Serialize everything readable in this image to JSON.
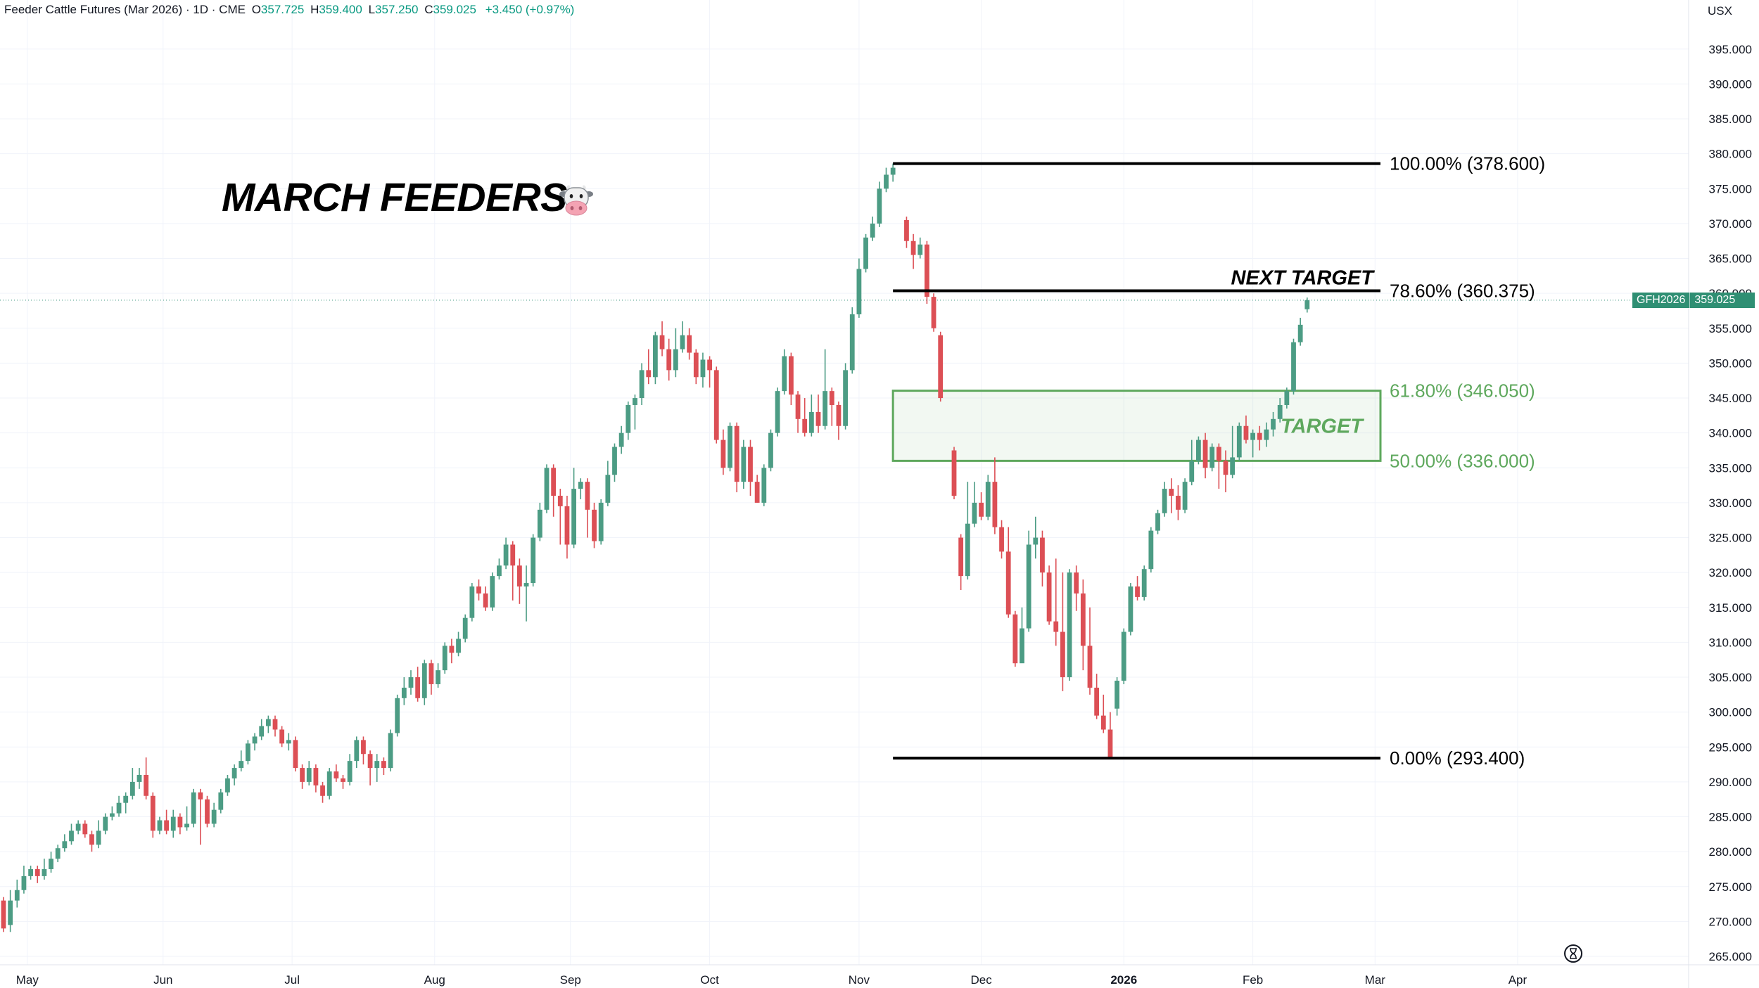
{
  "header": {
    "symbol_title": "Feeder Cattle Futures (Mar 2026) · 1D · CME",
    "open_label": "O",
    "open": "357.725",
    "high_label": "H",
    "high": "359.400",
    "low_label": "L",
    "low": "357.250",
    "close_label": "C",
    "close": "359.025",
    "change": "+3.450 (+0.97%)"
  },
  "currency": "USX",
  "annotation_title": "MARCH FEEDERS",
  "price_tag": {
    "symbol": "GFH2026",
    "value": "359.025"
  },
  "colors": {
    "up": "#4c9c84",
    "down": "#dc4f55",
    "target_zone": "#5ea85d",
    "fib_line": "#000000",
    "last_price_line": "#2f8f73"
  },
  "chart_data": {
    "type": "candlestick",
    "title": "Feeder Cattle Futures (Mar 2026)",
    "y_axis": {
      "ticks": [
        265.0,
        270.0,
        275.0,
        280.0,
        285.0,
        290.0,
        295.0,
        300.0,
        305.0,
        310.0,
        315.0,
        320.0,
        325.0,
        330.0,
        335.0,
        340.0,
        345.0,
        350.0,
        355.0,
        360.0,
        365.0,
        370.0,
        375.0,
        380.0,
        385.0,
        390.0,
        395.0
      ],
      "range": [
        264.5,
        397.5
      ],
      "side": "right"
    },
    "x_axis": {
      "labels": [
        "May",
        "Jun",
        "Jul",
        "Aug",
        "Sep",
        "Oct",
        "Nov",
        "Dec",
        "2026",
        "Feb",
        "Mar",
        "Apr"
      ],
      "bold": [
        "2026"
      ]
    },
    "candles": [
      [
        0,
        273,
        269,
        273.5,
        268.5
      ],
      [
        1,
        269.5,
        273,
        274.5,
        268.5
      ],
      [
        2,
        273,
        274.5,
        276,
        272
      ],
      [
        3,
        274.5,
        276.5,
        278,
        274
      ],
      [
        4,
        276.5,
        277.5,
        278,
        276
      ],
      [
        5,
        277.5,
        276.5,
        278,
        275.5
      ],
      [
        6,
        276.5,
        277.5,
        279,
        276
      ],
      [
        7,
        277.5,
        279,
        280,
        277
      ],
      [
        8,
        279,
        280.5,
        281,
        278.5
      ],
      [
        9,
        280.5,
        281.5,
        282.5,
        280
      ],
      [
        10,
        281.5,
        283,
        284,
        281
      ],
      [
        11,
        283,
        284,
        284.5,
        282.5
      ],
      [
        12,
        284,
        282.5,
        284.5,
        282
      ],
      [
        13,
        282.5,
        281,
        283,
        280
      ],
      [
        14,
        281,
        283,
        284.5,
        280.5
      ],
      [
        15,
        283,
        285,
        285.5,
        282.5
      ],
      [
        16,
        285,
        285.5,
        286.5,
        284.5
      ],
      [
        17,
        285.5,
        287,
        288,
        285
      ],
      [
        18,
        287,
        288,
        288.5,
        285.5
      ],
      [
        19,
        288,
        290,
        292,
        287.5
      ],
      [
        20,
        290,
        291,
        292,
        289
      ],
      [
        21,
        291,
        288,
        293.5,
        287.5
      ],
      [
        22,
        288,
        283,
        288.5,
        282
      ],
      [
        23,
        283,
        284.5,
        285,
        282.5
      ],
      [
        24,
        284.5,
        283,
        286,
        282.5
      ],
      [
        25,
        283,
        285,
        286,
        282
      ],
      [
        26,
        285,
        283.5,
        285.5,
        282.5
      ],
      [
        27,
        283.5,
        284,
        286.5,
        283
      ],
      [
        28,
        284,
        288.5,
        289,
        283.5
      ],
      [
        29,
        288.5,
        287.5,
        289,
        281
      ],
      [
        30,
        287.5,
        284,
        288,
        283.5
      ],
      [
        31,
        284,
        286,
        287,
        283.5
      ],
      [
        32,
        286,
        288.5,
        289,
        285.5
      ],
      [
        33,
        288.5,
        290.5,
        291,
        288
      ],
      [
        34,
        290.5,
        292,
        292.5,
        289.5
      ],
      [
        35,
        292,
        293,
        294.5,
        291.5
      ],
      [
        36,
        293,
        295.5,
        296,
        292.5
      ],
      [
        37,
        295.5,
        296.5,
        297,
        294.5
      ],
      [
        38,
        296.5,
        298,
        299,
        296
      ],
      [
        39,
        298,
        299,
        299.5,
        297
      ],
      [
        40,
        299,
        297.5,
        299.5,
        296.5
      ],
      [
        41,
        297.5,
        295.5,
        298,
        295
      ],
      [
        42,
        295.5,
        296,
        297,
        294.5
      ],
      [
        43,
        296,
        292,
        296.5,
        291.5
      ],
      [
        44,
        292,
        290,
        292.5,
        289
      ],
      [
        45,
        290,
        292,
        293,
        289.5
      ],
      [
        46,
        292,
        289.5,
        292.5,
        288.5
      ],
      [
        47,
        289.5,
        288,
        290,
        287
      ],
      [
        48,
        288,
        291.5,
        292,
        287.5
      ],
      [
        49,
        291.5,
        290.5,
        292.5,
        290
      ],
      [
        50,
        290.5,
        290,
        291,
        289
      ],
      [
        51,
        290,
        293,
        294,
        289.5
      ],
      [
        52,
        293,
        296,
        296.5,
        292
      ],
      [
        53,
        296,
        294,
        296.5,
        292.5
      ],
      [
        54,
        294,
        292,
        294.5,
        289.5
      ],
      [
        55,
        292,
        293,
        294,
        290
      ],
      [
        56,
        293,
        292,
        293.5,
        291
      ],
      [
        57,
        292,
        297,
        297.5,
        291.5
      ],
      [
        58,
        297,
        302,
        302.5,
        296.5
      ],
      [
        59,
        302,
        303.5,
        305,
        301
      ],
      [
        60,
        303.5,
        305,
        306,
        302.5
      ],
      [
        61,
        305,
        302,
        306.5,
        301.5
      ],
      [
        62,
        302,
        307,
        307.5,
        301
      ],
      [
        63,
        307,
        304,
        307.5,
        302.5
      ],
      [
        64,
        304,
        306,
        307,
        303.5
      ],
      [
        65,
        306,
        309.5,
        310,
        305.5
      ],
      [
        66,
        309.5,
        308.5,
        310.5,
        307
      ],
      [
        67,
        308.5,
        310.5,
        311.5,
        308
      ],
      [
        68,
        310.5,
        313.5,
        314,
        310
      ],
      [
        69,
        313.5,
        318,
        318.5,
        313
      ],
      [
        70,
        318,
        317,
        319,
        316
      ],
      [
        71,
        317,
        315,
        318,
        314.5
      ],
      [
        72,
        315,
        319.5,
        320,
        314.5
      ],
      [
        73,
        319.5,
        321,
        322,
        319
      ],
      [
        74,
        321,
        324,
        325,
        320.5
      ],
      [
        75,
        324,
        321,
        324.5,
        316
      ],
      [
        76,
        321,
        318,
        322,
        315.5
      ],
      [
        77,
        318,
        318.5,
        321,
        313
      ],
      [
        78,
        318.5,
        325,
        325.5,
        318
      ],
      [
        79,
        325,
        329,
        330,
        324.5
      ],
      [
        80,
        329,
        335,
        335.5,
        328.5
      ],
      [
        81,
        335,
        331,
        335.5,
        328
      ],
      [
        82,
        331,
        329.5,
        332,
        324
      ],
      [
        83,
        329.5,
        324,
        331,
        322
      ],
      [
        84,
        324,
        332,
        335,
        323.5
      ],
      [
        85,
        332,
        333,
        333.5,
        330.5
      ],
      [
        86,
        333,
        329,
        333.5,
        325
      ],
      [
        87,
        329,
        324.5,
        330,
        323.5
      ],
      [
        88,
        324.5,
        330,
        330.5,
        324
      ],
      [
        89,
        330,
        334,
        336,
        329.5
      ],
      [
        90,
        334,
        338,
        338.5,
        333
      ],
      [
        91,
        338,
        340,
        341,
        337
      ],
      [
        92,
        340,
        344,
        344.5,
        339
      ],
      [
        93,
        344,
        345,
        345.5,
        340.5
      ],
      [
        94,
        345,
        349,
        350,
        344
      ],
      [
        95,
        349,
        348,
        352,
        347
      ],
      [
        96,
        348,
        354,
        354.5,
        347
      ],
      [
        97,
        354,
        352,
        356,
        351
      ],
      [
        98,
        352,
        349,
        353.5,
        347.5
      ],
      [
        99,
        349,
        352,
        355,
        348
      ],
      [
        100,
        352,
        354,
        356,
        351.5
      ],
      [
        101,
        354,
        351.5,
        355,
        350.5
      ],
      [
        102,
        351.5,
        348,
        352,
        347
      ],
      [
        103,
        348,
        350.5,
        351.5,
        346.5
      ],
      [
        104,
        350.5,
        349,
        351,
        346.5
      ],
      [
        105,
        349,
        339,
        349.5,
        338.5
      ],
      [
        106,
        339,
        335,
        340.5,
        334
      ],
      [
        107,
        335,
        341,
        341.5,
        334.5
      ],
      [
        108,
        341,
        333,
        341.5,
        331.5
      ],
      [
        109,
        333,
        338,
        339,
        332
      ],
      [
        110,
        338,
        333,
        339,
        331
      ],
      [
        111,
        333,
        330,
        334,
        330
      ],
      [
        112,
        330,
        335,
        335.5,
        329.5
      ],
      [
        113,
        335,
        340,
        340.5,
        334.5
      ],
      [
        114,
        340,
        346,
        346.5,
        339.5
      ],
      [
        115,
        346,
        351,
        352,
        345.5
      ],
      [
        116,
        351,
        345.5,
        351.5,
        344
      ],
      [
        117,
        345.5,
        342,
        346,
        340
      ],
      [
        118,
        342,
        340,
        345,
        339.5
      ],
      [
        119,
        340,
        343,
        345.5,
        339.5
      ],
      [
        120,
        343,
        341,
        345.5,
        340
      ],
      [
        121,
        341,
        346,
        352,
        340.5
      ],
      [
        122,
        346,
        344,
        346.5,
        341
      ],
      [
        123,
        344,
        341,
        344.5,
        339
      ],
      [
        124,
        341,
        349,
        350,
        340.5
      ],
      [
        125,
        349,
        357,
        358,
        348.5
      ],
      [
        126,
        357,
        363.5,
        365,
        356.5
      ],
      [
        127,
        363.5,
        368,
        368.5,
        363
      ],
      [
        128,
        368,
        370,
        371,
        367.5
      ],
      [
        129,
        370,
        375,
        376,
        369.5
      ],
      [
        130,
        375,
        377,
        378,
        374.5
      ],
      [
        131,
        377,
        378,
        378.6,
        376
      ],
      [
        133,
        370.5,
        367.5,
        371,
        366.5
      ],
      [
        134,
        367.5,
        365.5,
        368.5,
        363.5
      ],
      [
        135,
        365.5,
        367,
        368,
        365
      ],
      [
        136,
        367,
        359.5,
        367.5,
        358.5
      ],
      [
        137,
        359.5,
        355,
        360,
        354.5
      ],
      [
        138,
        354,
        345,
        354.5,
        344.5
      ],
      [
        140,
        337.5,
        331,
        338,
        330.5
      ],
      [
        141,
        325,
        319.5,
        325.5,
        317.5
      ],
      [
        142,
        319.5,
        327,
        333,
        319
      ],
      [
        143,
        327,
        330,
        333,
        326.5
      ],
      [
        144,
        330,
        328,
        331.5,
        327.5
      ],
      [
        145,
        328,
        333,
        334,
        327.5
      ],
      [
        146,
        333,
        326.5,
        336.5,
        325.5
      ],
      [
        147,
        326.5,
        323,
        327.5,
        322
      ],
      [
        148,
        323,
        314,
        326.5,
        313.5
      ],
      [
        149,
        314,
        307,
        314.5,
        306.5
      ],
      [
        150,
        307,
        312,
        315,
        308
      ],
      [
        151,
        312,
        324,
        326,
        311.5
      ],
      [
        152,
        324,
        325,
        328,
        322
      ],
      [
        153,
        325,
        320,
        326,
        318
      ],
      [
        154,
        320,
        313,
        321,
        312.5
      ],
      [
        155,
        313,
        311.5,
        322,
        309.5
      ],
      [
        156,
        311.5,
        305,
        320,
        303
      ],
      [
        157,
        305,
        320,
        320.5,
        304.5
      ],
      [
        158,
        320,
        317,
        321,
        314.5
      ],
      [
        159,
        317,
        309.5,
        319,
        306
      ],
      [
        160,
        309.5,
        303.5,
        315,
        302.5
      ],
      [
        161,
        303.5,
        299.5,
        305.5,
        299
      ],
      [
        162,
        299.5,
        297.5,
        302.5,
        297
      ],
      [
        163,
        297.5,
        293.4,
        300,
        293.4
      ],
      [
        164,
        300.5,
        304.5,
        305,
        299.5
      ],
      [
        165,
        304.5,
        311.5,
        312,
        304
      ],
      [
        166,
        311.5,
        318,
        318.5,
        311
      ],
      [
        167,
        318,
        316.5,
        319.5,
        316
      ],
      [
        168,
        316.5,
        320.5,
        321,
        316
      ],
      [
        169,
        320.5,
        326,
        326.5,
        320
      ],
      [
        170,
        326,
        328.5,
        329,
        325.5
      ],
      [
        171,
        328.5,
        332,
        333,
        328
      ],
      [
        172,
        332,
        331,
        333.5,
        328.5
      ],
      [
        173,
        331,
        329,
        332.5,
        327.5
      ],
      [
        174,
        329,
        333,
        333.5,
        328.5
      ],
      [
        175,
        333,
        336,
        339,
        332.5
      ],
      [
        176,
        336,
        339,
        339.5,
        335.5
      ],
      [
        177,
        339,
        335,
        340,
        333.5
      ],
      [
        178,
        335,
        338,
        338.5,
        334.5
      ],
      [
        179,
        338,
        336,
        338.5,
        332
      ],
      [
        180,
        336,
        334,
        337.5,
        331.5
      ],
      [
        181,
        334,
        336.5,
        341,
        333.5
      ],
      [
        182,
        336.5,
        341,
        341.5,
        336
      ],
      [
        183,
        341,
        339,
        342.5,
        338.5
      ],
      [
        184,
        339,
        340,
        340.5,
        336.5
      ],
      [
        185,
        340,
        339,
        341,
        337.5
      ],
      [
        186,
        339,
        340.5,
        341.5,
        338
      ],
      [
        187,
        340.5,
        342,
        343,
        339.5
      ],
      [
        188,
        342,
        344,
        345,
        341.5
      ],
      [
        189,
        344,
        346,
        346.5,
        343.5
      ],
      [
        190,
        346,
        353,
        353.5,
        345.5
      ],
      [
        191,
        353,
        355.5,
        356.5,
        352.5
      ],
      [
        192,
        357.725,
        359.025,
        359.4,
        357.25
      ]
    ],
    "x_label_slots": [
      3.5,
      23.5,
      42.5,
      63.5,
      83.5,
      104,
      126,
      144,
      165,
      184,
      202,
      223
    ],
    "fib_levels": [
      {
        "label": "100.00% (378.600)",
        "price": 378.6,
        "start_slot": 131,
        "style": "line"
      },
      {
        "label": "78.60% (360.375)",
        "price": 360.375,
        "start_slot": 131,
        "style": "line"
      },
      {
        "label": "61.80% (346.050)",
        "price": 346.05,
        "start_slot": 131,
        "style": "zone"
      },
      {
        "label": "50.00% (336.000)",
        "price": 336.0,
        "start_slot": 131,
        "style": "zone"
      },
      {
        "label": "0.00% (293.400)",
        "price": 293.4,
        "start_slot": 131,
        "style": "line"
      }
    ],
    "zone_label": "TARGET",
    "line_label": "NEXT TARGET",
    "last_price": 359.025
  }
}
